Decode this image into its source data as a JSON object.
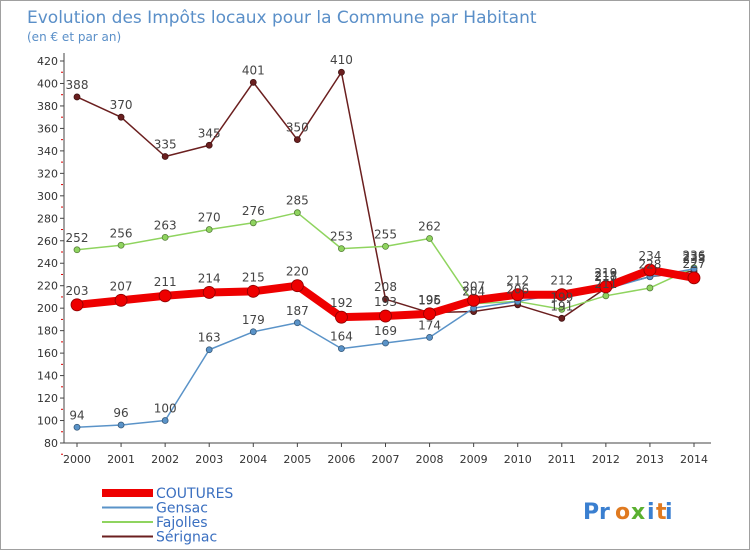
{
  "chart_data": {
    "type": "line",
    "title": "Evolution des Impôts locaux pour la Commune par Habitant",
    "subtitle": "(en € et par an)",
    "xlabel": "",
    "ylabel": "",
    "categories": [
      "2000",
      "2001",
      "2002",
      "2003",
      "2004",
      "2005",
      "2006",
      "2007",
      "2008",
      "2009",
      "2010",
      "2011",
      "2012",
      "2013",
      "2014"
    ],
    "ylim": [
      80,
      420
    ],
    "yticks": [
      80,
      100,
      120,
      140,
      160,
      180,
      200,
      220,
      240,
      260,
      280,
      300,
      320,
      340,
      360,
      380,
      400,
      420
    ],
    "grid": false,
    "legend_position": "bottom-left",
    "series": [
      {
        "name": "Sérignac",
        "color": "#6b1f1f",
        "width": 1.5,
        "values": [
          388,
          370,
          335,
          345,
          401,
          350,
          410,
          208,
          196,
          197,
          203,
          191,
          218,
          228,
          233
        ]
      },
      {
        "name": "Fajolles",
        "color": "#8fd45f",
        "width": 1.5,
        "values": [
          252,
          256,
          263,
          270,
          276,
          285,
          253,
          255,
          262,
          204,
          206,
          199,
          211,
          218,
          236
        ]
      },
      {
        "name": "Gensac",
        "color": "#5a93c8",
        "width": 1.5,
        "values": [
          94,
          96,
          100,
          163,
          179,
          187,
          164,
          169,
          174,
          200,
          206,
          213,
          217,
          228,
          235
        ]
      },
      {
        "name": "COUTURES",
        "color": "#ee0000",
        "width": 8,
        "values": [
          203,
          207,
          211,
          214,
          215,
          220,
          192,
          193,
          195,
          207,
          212,
          212,
          219,
          234,
          227
        ]
      }
    ],
    "data_labels": {
      "Sérignac": [
        "388",
        "370",
        "335",
        "345",
        "401",
        "350",
        "410",
        "208",
        "196",
        "",
        "",
        "191",
        "218",
        "228",
        "233"
      ],
      "Fajolles": [
        "252",
        "256",
        "263",
        "270",
        "276",
        "285",
        "253",
        "255",
        "262",
        "204",
        "206",
        "199",
        "211",
        "",
        "236"
      ],
      "Gensac": [
        "94",
        "96",
        "100",
        "163",
        "179",
        "187",
        "164",
        "169",
        "174",
        "",
        "",
        "",
        "217",
        "",
        "235"
      ],
      "COUTURES": [
        "203",
        "207",
        "211",
        "214",
        "215",
        "220",
        "192",
        "193",
        "195",
        "207",
        "212",
        "212",
        "219",
        "234",
        "227"
      ]
    }
  },
  "watermark": {
    "text": "Proxiti"
  }
}
